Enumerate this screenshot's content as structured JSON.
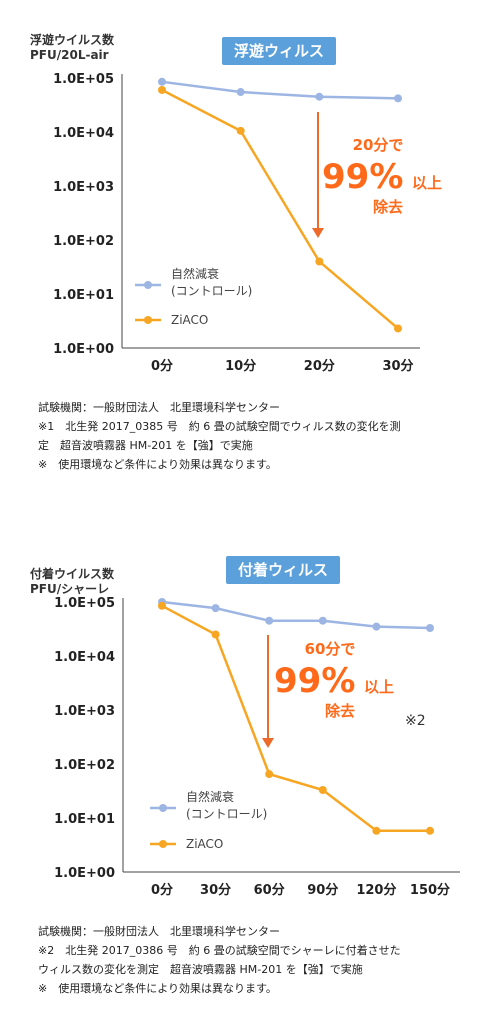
{
  "chart_data": [
    {
      "type": "line",
      "title": "浮遊ウィルス",
      "ylabel": [
        "浮遊ウイルス数",
        "PFU/20L-air"
      ],
      "log_y": true,
      "y_ticks": [
        "1.0E+05",
        "1.0E+04",
        "1.0E+03",
        "1.0E+02",
        "1.0E+01",
        "1.0E+00"
      ],
      "ylim": [
        1,
        100000
      ],
      "categories": [
        "0分",
        "10分",
        "20分",
        "30分"
      ],
      "series": [
        {
          "name": "自然減衰 (コントロール)",
          "legend": [
            "自然減衰",
            "(コントロール)"
          ],
          "color": "#9db5e3",
          "values": [
            85000,
            55000,
            45000,
            42000
          ]
        },
        {
          "name": "ZiACO",
          "legend": [
            "ZiACO"
          ],
          "color": "#f7a623",
          "values": [
            60000,
            10500,
            40,
            2.3
          ]
        }
      ],
      "annotation": {
        "top": "20分で",
        "big": "99%",
        "suffix": "以上",
        "bottom": "除去"
      },
      "notes": [
        "試験機関：一般財団法人　北里環境科学センター",
        "※1　北生発 2017_0385 号　約 6 畳の試験空間でウィルス数の変化を測",
        "定　超音波噴霧器 HM-201 を【強】で実施",
        "※　使用環境など条件により効果は異なります。"
      ]
    },
    {
      "type": "line",
      "title": "付着ウィルス",
      "ylabel": [
        "付着ウイルス数",
        "PFU/シャーレ"
      ],
      "log_y": true,
      "y_ticks": [
        "1.0E+05",
        "1.0E+04",
        "1.0E+03",
        "1.0E+02",
        "1.0E+01",
        "1.0E+00"
      ],
      "ylim": [
        1,
        100000
      ],
      "categories": [
        "0分",
        "30分",
        "60分",
        "90分",
        "120分",
        "150分"
      ],
      "series": [
        {
          "name": "自然減衰 (コントロール)",
          "legend": [
            "自然減衰",
            "(コントロール)"
          ],
          "color": "#9db5e3",
          "values": [
            100000,
            77000,
            45000,
            45000,
            35000,
            33000
          ]
        },
        {
          "name": "ZiACO",
          "legend": [
            "ZiACO"
          ],
          "color": "#f7a623",
          "values": [
            85000,
            25000,
            65,
            33,
            5.8,
            5.8
          ]
        }
      ],
      "annotation": {
        "top": "60分で",
        "big": "99%",
        "suffix": "以上",
        "bottom": "除去",
        "mark": "※2"
      },
      "notes": [
        "試験機関：一般財団法人　北里環境科学センター",
        "※2　北生発 2017_0386 号　約 6 畳の試験空間でシャーレに付着させた",
        "ウィルス数の変化を測定　超音波噴霧器 HM-201 を【強】で実施",
        "※　使用環境など条件により効果は異なります。"
      ]
    }
  ]
}
